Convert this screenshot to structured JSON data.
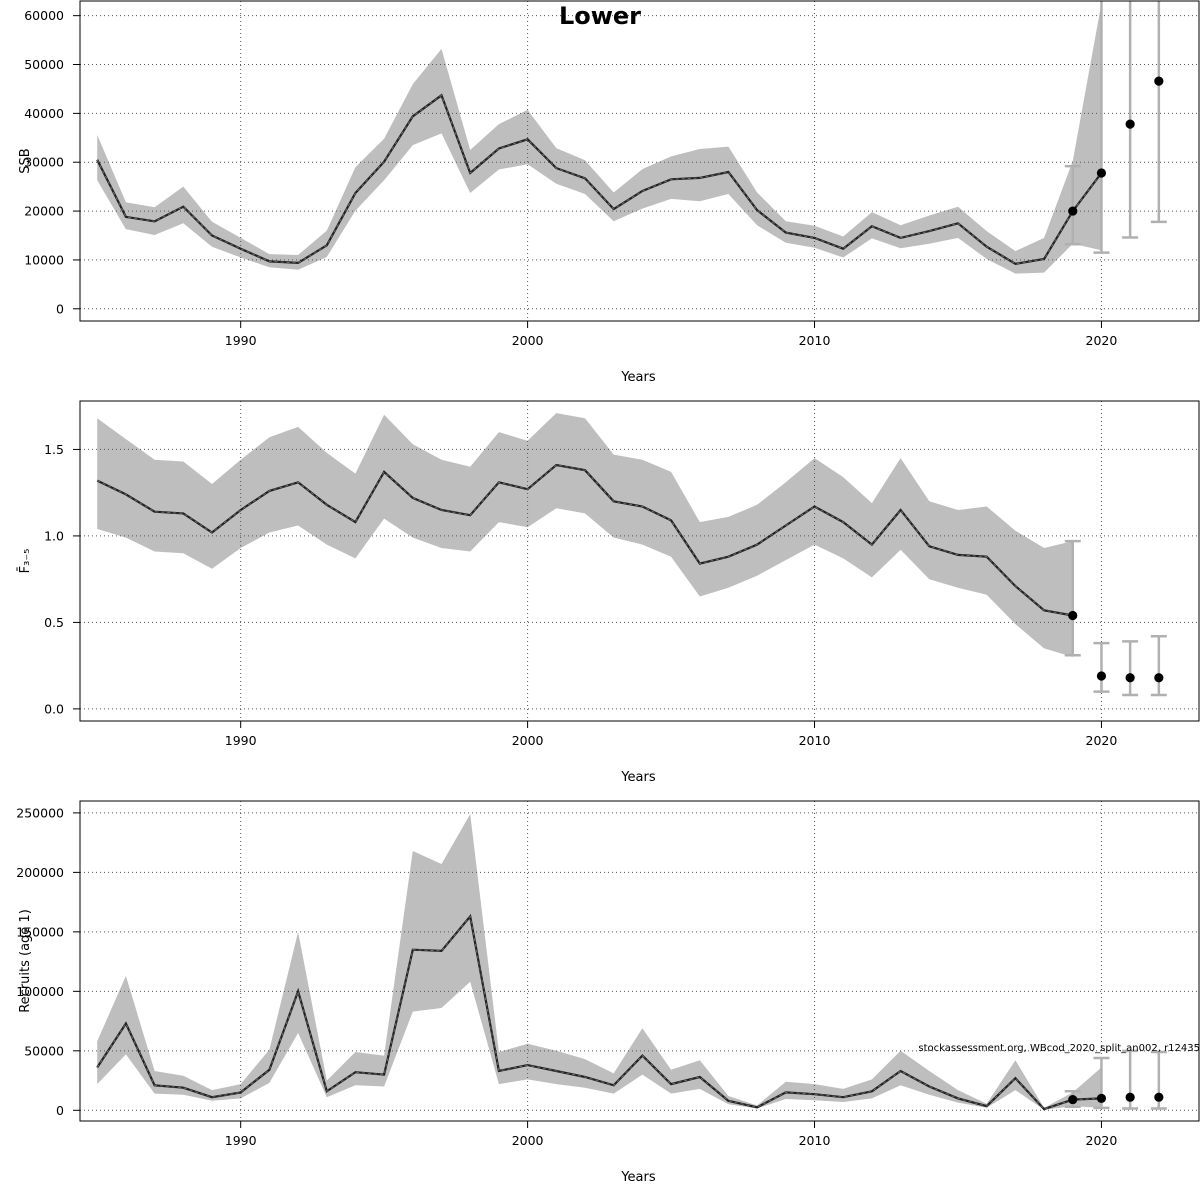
{
  "figure": {
    "title": "Lower",
    "watermark": "stockassessment.org, WBcod_2020_split_an002, r12435"
  },
  "chart_data": [
    {
      "type": "line",
      "title": "Lower",
      "xlabel": "Years",
      "ylabel": "SSB",
      "xlim": [
        1984.4,
        2023.4
      ],
      "ylim": [
        -2500,
        63000
      ],
      "xticks": [
        1990,
        2000,
        2010,
        2020
      ],
      "yticks": [
        0,
        10000,
        20000,
        30000,
        40000,
        50000,
        60000
      ],
      "grid": true,
      "series": [
        {
          "x": [
            1985,
            1986,
            1987,
            1988,
            1989,
            1990,
            1991,
            1992,
            1993,
            1994,
            1995,
            1996,
            1997,
            1998,
            1999,
            2000,
            2001,
            2002,
            2003,
            2004,
            2005,
            2006,
            2007,
            2008,
            2009,
            2010,
            2011,
            2012,
            2013,
            2014,
            2015,
            2016,
            2017,
            2018,
            2019,
            2020
          ],
          "y": [
            30500,
            18800,
            17900,
            20900,
            15000,
            12300,
            9700,
            9400,
            13000,
            23700,
            30100,
            39400,
            43700,
            27800,
            32800,
            34700,
            28800,
            26700,
            20400,
            24100,
            26500,
            26800,
            28000,
            20200,
            15600,
            14500,
            12300,
            16900,
            14500,
            15900,
            17500,
            12700,
            9200,
            10200,
            20000,
            27800
          ],
          "lower": [
            26300,
            16300,
            15100,
            17500,
            12700,
            10500,
            8500,
            8000,
            10600,
            20100,
            26300,
            33500,
            35900,
            23700,
            28500,
            29600,
            25600,
            23500,
            17900,
            20500,
            22500,
            22000,
            23500,
            17100,
            13500,
            12500,
            10500,
            14400,
            12400,
            13300,
            14500,
            10200,
            7200,
            7400,
            13300,
            12000
          ],
          "upper": [
            35600,
            21800,
            20800,
            25000,
            17800,
            14500,
            11200,
            11000,
            16000,
            29000,
            34800,
            46000,
            53200,
            32500,
            37800,
            40700,
            32900,
            30400,
            23800,
            28600,
            31200,
            32700,
            33200,
            23800,
            17900,
            17000,
            14800,
            19800,
            17100,
            19100,
            20900,
            15900,
            11800,
            14500,
            30300,
            62500
          ]
        }
      ],
      "forecast": {
        "x": [
          2019,
          2020,
          2021,
          2022
        ],
        "y": [
          20000,
          27800,
          37800,
          46600
        ],
        "lower": [
          13200,
          11500,
          14600,
          17800
        ],
        "upper": [
          29200,
          63500,
          63500,
          63500
        ]
      }
    },
    {
      "type": "line",
      "title": "",
      "xlabel": "Years",
      "ylabel": "F̄₃₋₅",
      "xlim": [
        1984.4,
        2023.4
      ],
      "ylim": [
        -0.07,
        1.78
      ],
      "xticks": [
        1990,
        2000,
        2010,
        2020
      ],
      "yticks": [
        0.0,
        0.5,
        1.0,
        1.5
      ],
      "ytick_labels": [
        "0.0",
        "0.5",
        "1.0",
        "1.5"
      ],
      "grid": true,
      "series": [
        {
          "x": [
            1985,
            1986,
            1987,
            1988,
            1989,
            1990,
            1991,
            1992,
            1993,
            1994,
            1995,
            1996,
            1997,
            1998,
            1999,
            2000,
            2001,
            2002,
            2003,
            2004,
            2005,
            2006,
            2007,
            2008,
            2009,
            2010,
            2011,
            2012,
            2013,
            2014,
            2015,
            2016,
            2017,
            2018,
            2019
          ],
          "y": [
            1.32,
            1.24,
            1.14,
            1.13,
            1.02,
            1.15,
            1.26,
            1.31,
            1.18,
            1.08,
            1.37,
            1.22,
            1.15,
            1.12,
            1.31,
            1.27,
            1.41,
            1.38,
            1.2,
            1.17,
            1.09,
            0.84,
            0.88,
            0.95,
            1.06,
            1.17,
            1.08,
            0.95,
            1.15,
            0.94,
            0.89,
            0.88,
            0.71,
            0.57,
            0.54
          ],
          "lower": [
            1.04,
            0.99,
            0.91,
            0.9,
            0.81,
            0.93,
            1.02,
            1.06,
            0.95,
            0.87,
            1.1,
            0.99,
            0.93,
            0.91,
            1.08,
            1.05,
            1.16,
            1.13,
            0.99,
            0.95,
            0.88,
            0.65,
            0.7,
            0.77,
            0.86,
            0.95,
            0.87,
            0.76,
            0.92,
            0.75,
            0.7,
            0.66,
            0.49,
            0.35,
            0.3
          ],
          "upper": [
            1.68,
            1.56,
            1.44,
            1.43,
            1.3,
            1.44,
            1.57,
            1.63,
            1.48,
            1.36,
            1.7,
            1.53,
            1.44,
            1.4,
            1.6,
            1.55,
            1.71,
            1.68,
            1.47,
            1.44,
            1.37,
            1.08,
            1.11,
            1.18,
            1.31,
            1.45,
            1.34,
            1.19,
            1.45,
            1.2,
            1.15,
            1.17,
            1.03,
            0.93,
            0.97
          ]
        }
      ],
      "forecast": {
        "x": [
          2019,
          2020,
          2021,
          2022
        ],
        "y": [
          0.54,
          0.19,
          0.18,
          0.18
        ],
        "lower": [
          0.31,
          0.1,
          0.08,
          0.08
        ],
        "upper": [
          0.97,
          0.38,
          0.39,
          0.42
        ]
      }
    },
    {
      "type": "line",
      "title": "",
      "xlabel": "Years",
      "ylabel": "Recruits (age 1)",
      "xlim": [
        1984.4,
        2023.4
      ],
      "ylim": [
        -9000,
        260000
      ],
      "xticks": [
        1990,
        2000,
        2010,
        2020
      ],
      "yticks": [
        0,
        50000,
        100000,
        150000,
        200000,
        250000
      ],
      "grid": true,
      "series": [
        {
          "x": [
            1985,
            1986,
            1987,
            1988,
            1989,
            1990,
            1991,
            1992,
            1993,
            1994,
            1995,
            1996,
            1997,
            1998,
            1999,
            2000,
            2001,
            2002,
            2003,
            2004,
            2005,
            2006,
            2007,
            2008,
            2009,
            2010,
            2011,
            2012,
            2013,
            2014,
            2015,
            2016,
            2017,
            2018,
            2019,
            2020
          ],
          "y": [
            36000,
            73000,
            21000,
            19000,
            11000,
            15000,
            34000,
            100000,
            16000,
            32000,
            30000,
            135000,
            134000,
            163000,
            33000,
            38000,
            33000,
            28000,
            21000,
            46000,
            22000,
            28000,
            8000,
            2500,
            15000,
            13500,
            11000,
            16000,
            33000,
            20000,
            10000,
            3500,
            27000,
            1000,
            9000,
            10000
          ],
          "lower": [
            22000,
            47000,
            14000,
            13000,
            8000,
            10000,
            23000,
            65000,
            11000,
            21000,
            20000,
            83000,
            86000,
            108000,
            22000,
            26000,
            22000,
            19000,
            14000,
            30000,
            14000,
            18000,
            5000,
            1500,
            9500,
            8500,
            7000,
            10000,
            21000,
            13000,
            6500,
            2200,
            17000,
            500,
            3500,
            2000
          ],
          "upper": [
            58000,
            113000,
            33000,
            29000,
            17000,
            22000,
            51000,
            150000,
            25000,
            49000,
            46000,
            218000,
            207000,
            249000,
            49000,
            56000,
            50000,
            43000,
            31000,
            69000,
            34000,
            42000,
            12000,
            4000,
            24000,
            22000,
            18000,
            26000,
            50000,
            33000,
            17000,
            5500,
            42000,
            2000,
            15000,
            36000
          ]
        }
      ],
      "forecast": {
        "x": [
          2019,
          2020,
          2021,
          2022
        ],
        "y": [
          9000,
          10000,
          11000,
          11000
        ],
        "lower": [
          3000,
          2000,
          1500,
          1500
        ],
        "upper": [
          16000,
          44000,
          50000,
          49000
        ]
      }
    }
  ]
}
